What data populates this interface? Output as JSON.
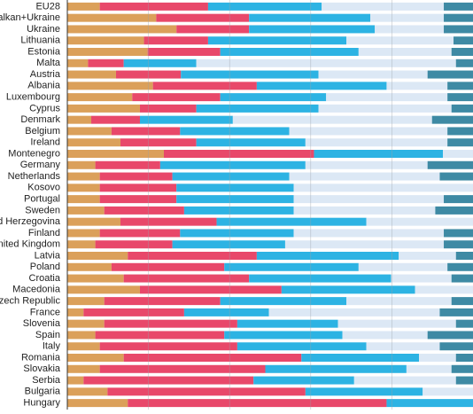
{
  "chart_data": {
    "type": "stacked-barh",
    "categories": [
      "EU28",
      "Balkan+Ukraine",
      "Ukraine",
      "Lithuania",
      "Estonia",
      "Malta",
      "Austria",
      "Albania",
      "Luxembourg",
      "Cyprus",
      "Denmark",
      "Belgium",
      "Ireland",
      "Montenegro",
      "Germany",
      "Netherlands",
      "Kosovo",
      "Portugal",
      "Sweden",
      "Bosnia and Herzegovina",
      "Finland",
      "United Kingdom",
      "Latvia",
      "Poland",
      "Croatia",
      "Macedonia",
      "Czech Republic",
      "France",
      "Slovenia",
      "Spain",
      "Italy",
      "Romania",
      "Slovakia",
      "Serbia",
      "Bulgaria",
      "Hungary"
    ],
    "series": [
      {
        "color": "#dba05a",
        "values": [
          8.0,
          21.9,
          26.9,
          18.9,
          19.8,
          5.1,
          12.0,
          21.1,
          16.0,
          17.9,
          5.9,
          10.9,
          13.1,
          23.8,
          6.9,
          8.0,
          8.0,
          8.0,
          9.1,
          13.1,
          8.0,
          6.9,
          14.9,
          10.9,
          13.9,
          17.9,
          9.1,
          4.0,
          9.1,
          6.9,
          8.0,
          13.9,
          8.0,
          4.0,
          9.9,
          14.9
        ]
      },
      {
        "color": "#e8486a",
        "values": [
          26.7,
          22.9,
          17.9,
          15.8,
          17.9,
          8.8,
          16.0,
          25.6,
          21.7,
          13.9,
          12.0,
          16.9,
          18.7,
          37.0,
          16.0,
          17.9,
          18.9,
          18.9,
          19.7,
          23.7,
          19.8,
          19.0,
          31.8,
          27.8,
          30.9,
          34.9,
          28.6,
          24.8,
          32.8,
          31.8,
          33.9,
          43.8,
          40.8,
          41.9,
          48.8,
          63.8
        ]
      },
      {
        "color": "#2db3e3",
        "values": [
          28.0,
          29.9,
          31.0,
          34.1,
          34.1,
          17.9,
          33.9,
          32.0,
          26.1,
          30.1,
          22.9,
          26.9,
          26.9,
          31.8,
          35.8,
          28.8,
          28.9,
          28.9,
          27.0,
          36.9,
          28.0,
          27.8,
          35.0,
          33.1,
          35.0,
          32.9,
          31.1,
          20.9,
          24.8,
          29.1,
          31.8,
          29.0,
          34.8,
          24.8,
          28.9,
          21.3
        ]
      },
      {
        "color": "#dce8f5",
        "values": [
          30.1,
          18.1,
          17.0,
          26.4,
          22.9,
          64.0,
          26.9,
          15.0,
          29.9,
          32.8,
          49.1,
          39.0,
          35.0,
          7.4,
          30.1,
          37.1,
          44.2,
          37.0,
          34.9,
          26.3,
          37.0,
          39.1,
          14.1,
          21.9,
          14.9,
          14.3,
          25.9,
          42.1,
          29.1,
          21.0,
          18.1,
          9.1,
          11.1,
          25.1,
          12.4,
          0
        ]
      },
      {
        "color": "#3e8aa4",
        "values": [
          7.2,
          7.2,
          7.2,
          4.8,
          5.3,
          4.2,
          11.2,
          6.3,
          6.3,
          5.3,
          10.1,
          6.3,
          6.3,
          0,
          11.2,
          8.2,
          0,
          7.2,
          9.3,
          0,
          7.2,
          7.2,
          4.2,
          6.3,
          5.3,
          0,
          5.3,
          8.2,
          4.2,
          11.2,
          8.2,
          4.2,
          5.3,
          4.2,
          0,
          0
        ]
      }
    ],
    "xlim": [
      0,
      100
    ],
    "xticks": [
      20,
      40,
      60,
      80
    ],
    "grid": true
  }
}
